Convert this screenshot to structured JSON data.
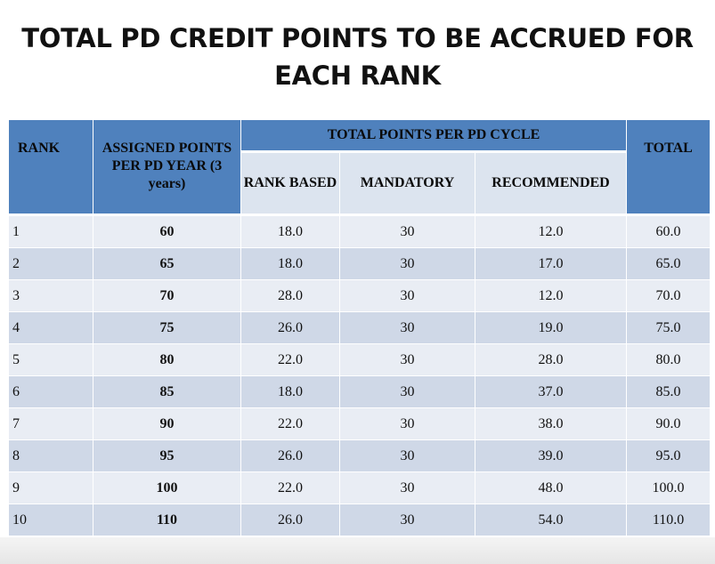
{
  "title_line1": "TOTAL PD CREDIT POINTS TO BE ACCRUED FOR",
  "title_line2": "EACH RANK",
  "headers": {
    "rank": "RANK",
    "assigned": "ASSIGNED POINTS PER PD YEAR (3 years)",
    "cycle": "TOTAL POINTS PER PD CYCLE",
    "rank_based": "RANK BASED",
    "mandatory": "MANDATORY",
    "recommended": "RECOMMENDED",
    "total": "TOTAL"
  },
  "rows": [
    {
      "rank": "1",
      "assigned": "60",
      "rank_based": "18.0",
      "mandatory": "30",
      "recommended": "12.0",
      "total": "60.0"
    },
    {
      "rank": "2",
      "assigned": "65",
      "rank_based": "18.0",
      "mandatory": "30",
      "recommended": "17.0",
      "total": "65.0"
    },
    {
      "rank": "3",
      "assigned": "70",
      "rank_based": "28.0",
      "mandatory": "30",
      "recommended": "12.0",
      "total": "70.0"
    },
    {
      "rank": "4",
      "assigned": "75",
      "rank_based": "26.0",
      "mandatory": "30",
      "recommended": "19.0",
      "total": "75.0"
    },
    {
      "rank": "5",
      "assigned": "80",
      "rank_based": "22.0",
      "mandatory": "30",
      "recommended": "28.0",
      "total": "80.0"
    },
    {
      "rank": "6",
      "assigned": "85",
      "rank_based": "18.0",
      "mandatory": "30",
      "recommended": "37.0",
      "total": "85.0"
    },
    {
      "rank": "7",
      "assigned": "90",
      "rank_based": "22.0",
      "mandatory": "30",
      "recommended": "38.0",
      "total": "90.0"
    },
    {
      "rank": "8",
      "assigned": "95",
      "rank_based": "26.0",
      "mandatory": "30",
      "recommended": "39.0",
      "total": "95.0"
    },
    {
      "rank": "9",
      "assigned": "100",
      "rank_based": "22.0",
      "mandatory": "30",
      "recommended": "48.0",
      "total": "100.0"
    },
    {
      "rank": "10",
      "assigned": "110",
      "rank_based": "26.0",
      "mandatory": "30",
      "recommended": "54.0",
      "total": "110.0"
    }
  ],
  "colors": {
    "header": "#4f81bd",
    "subheader": "#dce4ef",
    "row_light": "#e9edf4",
    "row_dark": "#cfd8e7"
  }
}
